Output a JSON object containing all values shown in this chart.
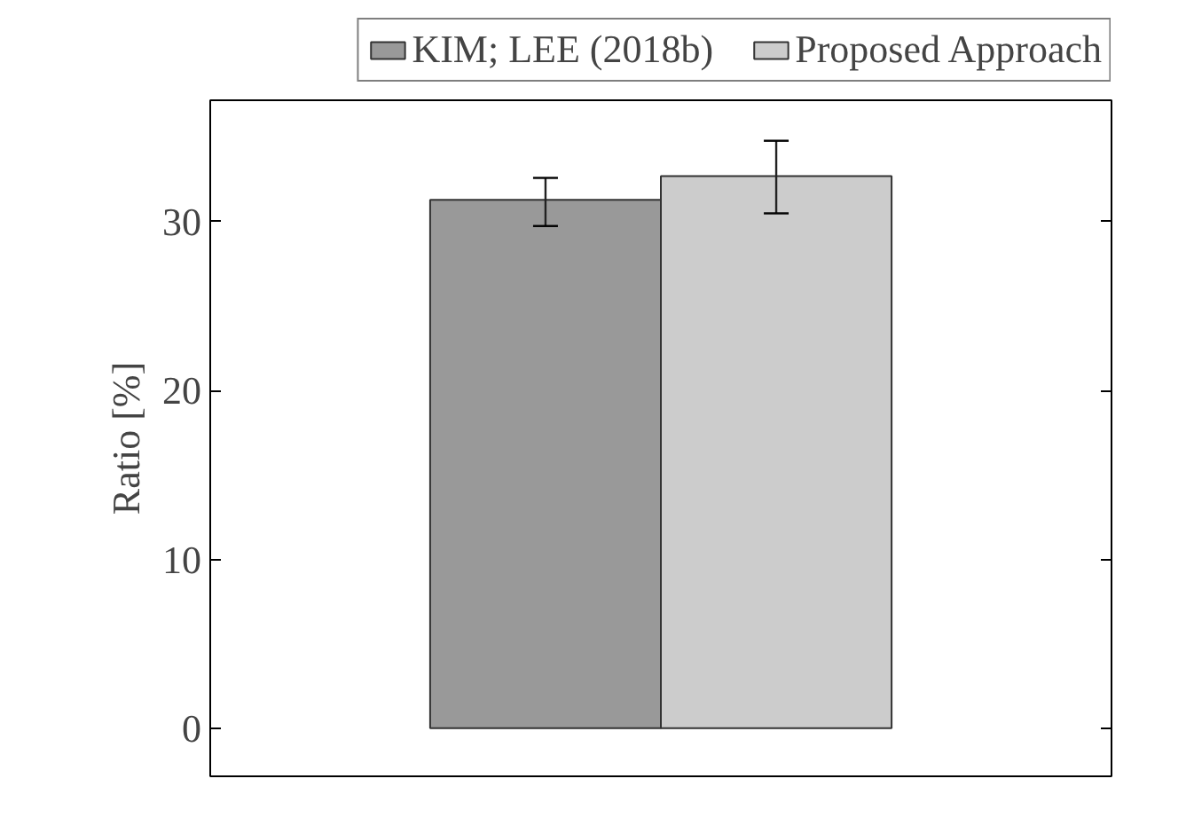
{
  "chart_data": {
    "type": "bar",
    "ylabel": "Ratio [%]",
    "categories": [
      null
    ],
    "series": [
      {
        "name": "KIM; LEE (2018b)",
        "color": "#999999",
        "values": [
          31.3
        ],
        "errors": [
          [
            29.75,
            32.6
          ]
        ]
      },
      {
        "name": "Proposed Approach",
        "color": "#cccccc",
        "values": [
          32.7
        ],
        "errors": [
          [
            30.5,
            34.8
          ]
        ]
      }
    ],
    "ylim": [
      -2.85,
      37.2
    ],
    "yticks": [
      0,
      10,
      20,
      30
    ],
    "grid": false,
    "legend": "top"
  }
}
